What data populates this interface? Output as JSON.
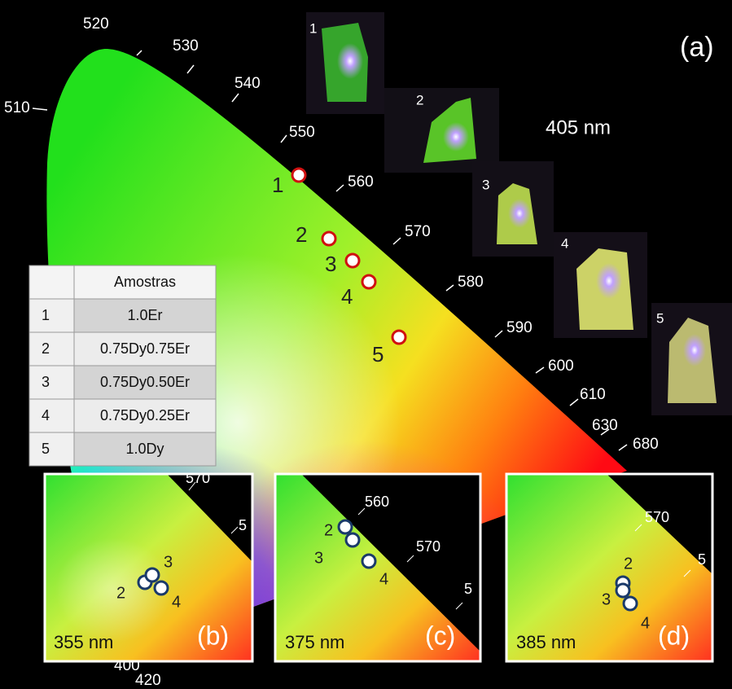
{
  "panel_label": "(a)",
  "excitation": "405 nm",
  "wavelength_labels": [
    "510",
    "520",
    "530",
    "540",
    "550",
    "560",
    "570",
    "580",
    "590",
    "600",
    "610",
    "630",
    "680",
    "400",
    "420"
  ],
  "point_labels": [
    "1",
    "2",
    "3",
    "4",
    "5"
  ],
  "photo_labels": [
    "1",
    "2",
    "3",
    "4",
    "5"
  ],
  "table": {
    "header": "Amostras",
    "rows": [
      [
        "1",
        "1.0Er"
      ],
      [
        "2",
        "0.75Dy0.75Er"
      ],
      [
        "3",
        "0.75Dy0.50Er"
      ],
      [
        "4",
        "0.75Dy0.25Er"
      ],
      [
        "5",
        "1.0Dy"
      ]
    ]
  },
  "insets": [
    {
      "panel": "(b)",
      "excitation": "355 nm",
      "wavelength_labels": [
        "570",
        "5"
      ],
      "point_labels": [
        "2",
        "3",
        "4"
      ]
    },
    {
      "panel": "(c)",
      "excitation": "375 nm",
      "wavelength_labels": [
        "560",
        "570",
        "5"
      ],
      "point_labels": [
        "2",
        "3",
        "4"
      ]
    },
    {
      "panel": "(d)",
      "excitation": "385 nm",
      "wavelength_labels": [
        "570",
        "5"
      ],
      "point_labels": [
        "2",
        "3",
        "4"
      ]
    }
  ]
}
